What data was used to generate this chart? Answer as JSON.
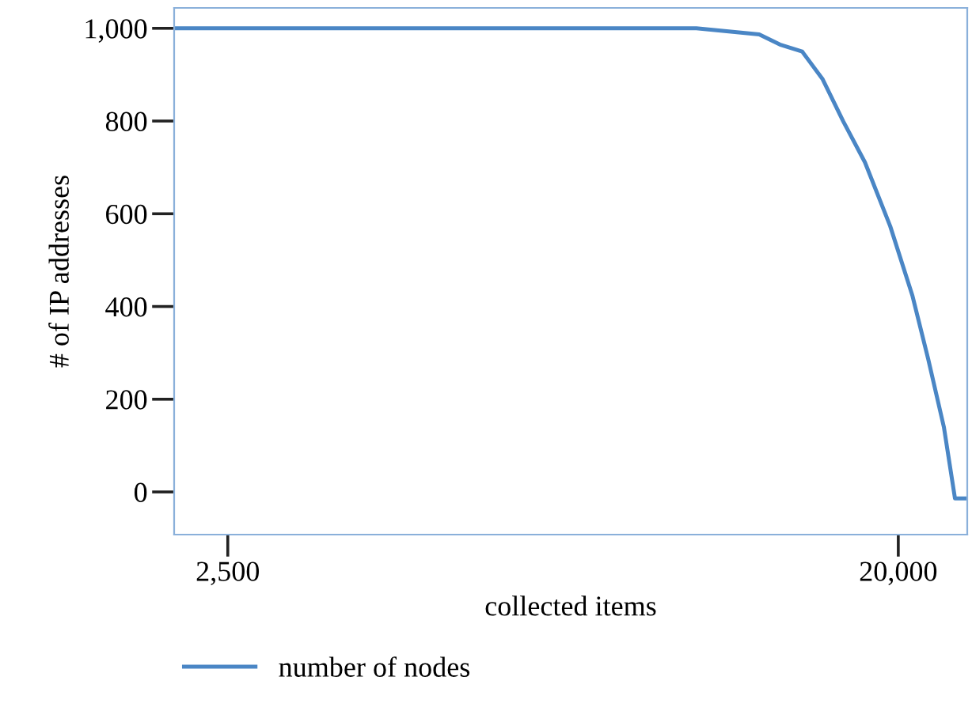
{
  "chart_data": {
    "type": "line",
    "xlabel": "collected items",
    "ylabel": "# of IP addresses",
    "xlim": [
      1100,
      21800
    ],
    "xticks": [
      {
        "value": 2500,
        "label": "2,500"
      },
      {
        "value": 20000,
        "label": "20,000"
      }
    ],
    "ylim": [
      -92,
      1044
    ],
    "yticks": [
      0,
      200,
      400,
      600,
      800,
      {
        "value": 1000,
        "label": "1,000"
      }
    ],
    "grid": false,
    "legend": "bottom left",
    "marker": "none",
    "line_style": "solid",
    "series": [
      {
        "name": "number of nodes",
        "color": "#4a86c5",
        "x": [
          1100,
          14730,
          16370,
          16910,
          17490,
          18020,
          18560,
          19130,
          19790,
          20370,
          20780,
          21190,
          21480,
          21800
        ],
        "values": [
          1000,
          1000,
          987,
          965,
          950,
          891,
          800,
          711,
          573,
          423,
          287,
          140,
          -14,
          -14
        ]
      }
    ]
  }
}
